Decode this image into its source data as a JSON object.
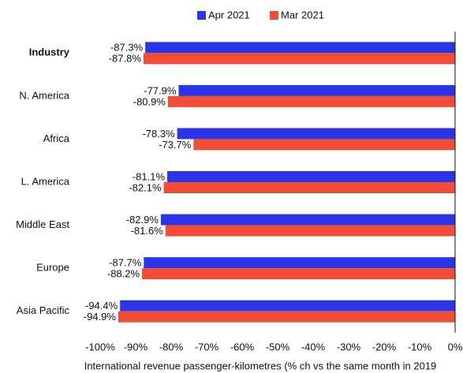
{
  "chart_data": {
    "type": "barh",
    "xlabel": "International revenue passenger-kilometres (% ch vs the same month in 2019",
    "categories": [
      "Industry",
      "N. America",
      "Africa",
      "L. America",
      "Middle East",
      "Europe",
      "Asia Pacific"
    ],
    "series": [
      {
        "name": "Apr 2021",
        "color": "#2b35e8",
        "values": [
          -87.3,
          -77.9,
          -78.3,
          -81.1,
          -82.9,
          -87.7,
          -94.4
        ],
        "value_labels": [
          "-87.3%",
          "-77.9%",
          "-78.3%",
          "-81.1%",
          "-82.9%",
          "-87.7%",
          "-94.4%"
        ]
      },
      {
        "name": "Mar 2021",
        "color": "#f24b36",
        "values": [
          -87.8,
          -80.9,
          -73.7,
          -82.1,
          -81.6,
          -88.2,
          -94.9
        ],
        "value_labels": [
          "-87.8%",
          "-80.9%",
          "-73.7%",
          "-82.1%",
          "-81.6%",
          "-88.2%",
          "-94.9%"
        ]
      }
    ],
    "xlim": [
      -100,
      0
    ],
    "xticks": [
      {
        "value": -100,
        "label": "-100%"
      },
      {
        "value": -90,
        "label": "-90%"
      },
      {
        "value": -80,
        "label": "-80%"
      },
      {
        "value": -70,
        "label": "-70%"
      },
      {
        "value": -60,
        "label": "-60%"
      },
      {
        "value": -50,
        "label": "-50%"
      },
      {
        "value": -40,
        "label": "-40%"
      },
      {
        "value": -30,
        "label": "-30%"
      },
      {
        "value": -20,
        "label": "-20%"
      },
      {
        "value": -10,
        "label": "-10%"
      },
      {
        "value": 0,
        "label": "0%"
      }
    ]
  }
}
